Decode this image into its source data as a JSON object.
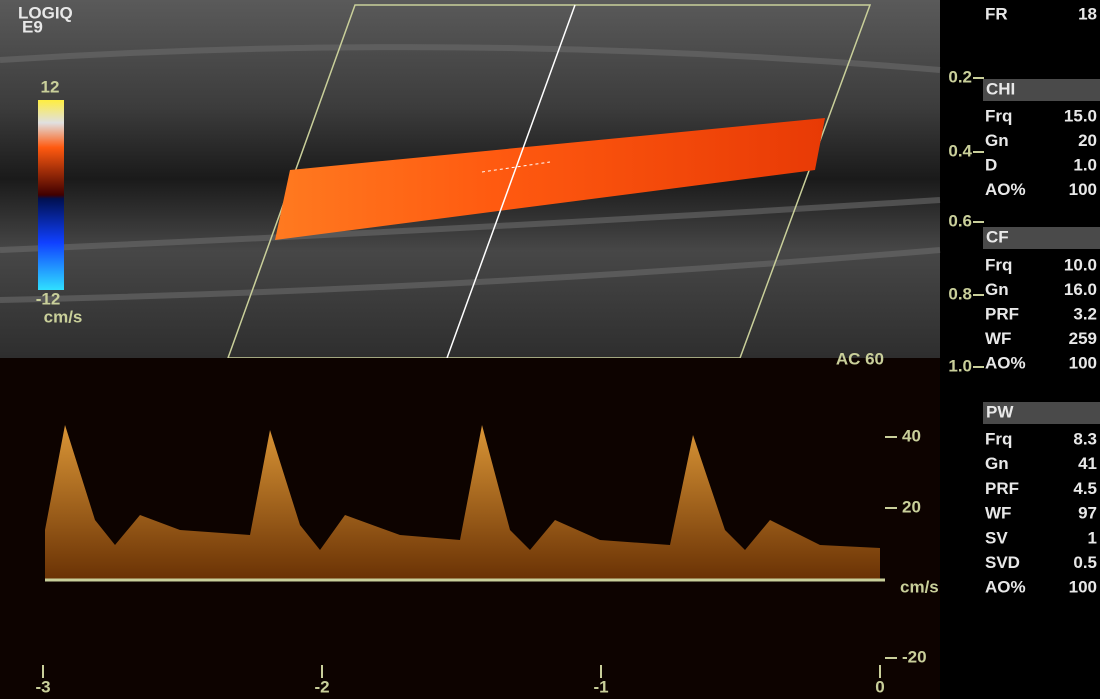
{
  "header": {
    "brand": "LOGIQ",
    "model": "E9"
  },
  "color_scale": {
    "max": "12",
    "min": "-12",
    "unit": "cm/s"
  },
  "depth_scale": {
    "ticks": [
      "0.2",
      "0.4",
      "0.6",
      "0.8",
      "1.0"
    ]
  },
  "spectral": {
    "label": "AC 60",
    "velocity_ticks": [
      "40",
      "20",
      "-20"
    ],
    "unit": "cm/s",
    "time_ticks": [
      "-3",
      "-2",
      "-1",
      "0"
    ]
  },
  "parameters": {
    "frame_rate": {
      "label": "FR",
      "value": "18"
    },
    "sections": [
      {
        "title": "CHI",
        "rows": [
          [
            "Frq",
            "15.0"
          ],
          [
            "Gn",
            "20"
          ],
          [
            "D",
            "1.0"
          ],
          [
            "AO%",
            "100"
          ]
        ]
      },
      {
        "title": "CF",
        "rows": [
          [
            "Frq",
            "10.0"
          ],
          [
            "Gn",
            "16.0"
          ],
          [
            "PRF",
            "3.2"
          ],
          [
            "WF",
            "259"
          ],
          [
            "AO%",
            "100"
          ]
        ]
      },
      {
        "title": "PW",
        "rows": [
          [
            "Frq",
            "8.3"
          ],
          [
            "Gn",
            "41"
          ],
          [
            "PRF",
            "4.5"
          ],
          [
            "WF",
            "97"
          ],
          [
            "SV",
            "1"
          ],
          [
            "SVD",
            "0.5"
          ],
          [
            "AO%",
            "100"
          ]
        ]
      }
    ]
  }
}
